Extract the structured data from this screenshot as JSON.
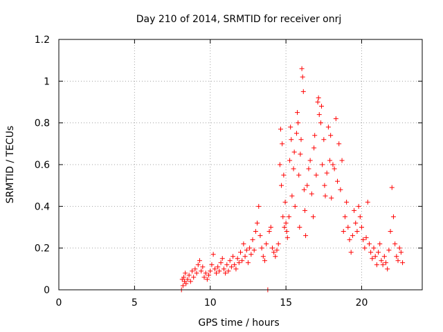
{
  "chart_data": {
    "type": "scatter",
    "title": "Day 210 of 2014, SRMTID for receiver onrj",
    "xlabel": "GPS time / hours",
    "ylabel": "SRMTID / TECUs",
    "xlim": [
      0,
      24
    ],
    "ylim": [
      0,
      1.2
    ],
    "xticks": [
      0,
      5,
      10,
      15,
      20
    ],
    "xtick_labels": [
      "0",
      "5",
      "10",
      "15",
      "20"
    ],
    "yticks": [
      0,
      0.2,
      0.4,
      0.6,
      0.8,
      1,
      1.2
    ],
    "ytick_labels": [
      "0",
      "0.2",
      "0.4",
      "0.6",
      "0.8",
      "1",
      "1.2"
    ],
    "grid": true,
    "marker": "+",
    "color": "#ff0000",
    "series": [
      {
        "name": "SRMTID",
        "points": [
          [
            8.1,
            0.0
          ],
          [
            8.15,
            0.05
          ],
          [
            8.2,
            0.02
          ],
          [
            8.25,
            0.06
          ],
          [
            8.3,
            0.04
          ],
          [
            8.35,
            0.08
          ],
          [
            8.4,
            0.03
          ],
          [
            8.5,
            0.05
          ],
          [
            8.6,
            0.07
          ],
          [
            8.7,
            0.04
          ],
          [
            8.8,
            0.09
          ],
          [
            8.9,
            0.06
          ],
          [
            9.0,
            0.1
          ],
          [
            9.1,
            0.08
          ],
          [
            9.2,
            0.12
          ],
          [
            9.3,
            0.14
          ],
          [
            9.4,
            0.09
          ],
          [
            9.5,
            0.11
          ],
          [
            9.6,
            0.06
          ],
          [
            9.7,
            0.08
          ],
          [
            9.8,
            0.05
          ],
          [
            9.9,
            0.07
          ],
          [
            10.0,
            0.09
          ],
          [
            10.1,
            0.12
          ],
          [
            10.2,
            0.17
          ],
          [
            10.3,
            0.1
          ],
          [
            10.4,
            0.08
          ],
          [
            10.5,
            0.11
          ],
          [
            10.6,
            0.09
          ],
          [
            10.7,
            0.13
          ],
          [
            10.8,
            0.15
          ],
          [
            10.9,
            0.1
          ],
          [
            11.0,
            0.08
          ],
          [
            11.1,
            0.12
          ],
          [
            11.2,
            0.09
          ],
          [
            11.3,
            0.14
          ],
          [
            11.4,
            0.11
          ],
          [
            11.5,
            0.16
          ],
          [
            11.6,
            0.12
          ],
          [
            11.7,
            0.1
          ],
          [
            11.8,
            0.15
          ],
          [
            11.9,
            0.13
          ],
          [
            12.0,
            0.18
          ],
          [
            12.1,
            0.14
          ],
          [
            12.2,
            0.22
          ],
          [
            12.3,
            0.16
          ],
          [
            12.4,
            0.19
          ],
          [
            12.5,
            0.13
          ],
          [
            12.6,
            0.2
          ],
          [
            12.7,
            0.17
          ],
          [
            12.8,
            0.24
          ],
          [
            12.9,
            0.19
          ],
          [
            13.0,
            0.28
          ],
          [
            13.1,
            0.32
          ],
          [
            13.2,
            0.4
          ],
          [
            13.3,
            0.26
          ],
          [
            13.4,
            0.2
          ],
          [
            13.5,
            0.16
          ],
          [
            13.6,
            0.14
          ],
          [
            13.7,
            0.22
          ],
          [
            13.8,
            0.0
          ],
          [
            13.9,
            0.28
          ],
          [
            14.0,
            0.3
          ],
          [
            14.1,
            0.2
          ],
          [
            14.2,
            0.18
          ],
          [
            14.3,
            0.16
          ],
          [
            14.4,
            0.19
          ],
          [
            14.5,
            0.22
          ],
          [
            14.6,
            0.6
          ],
          [
            14.65,
            0.77
          ],
          [
            14.7,
            0.5
          ],
          [
            14.75,
            0.7
          ],
          [
            14.8,
            0.35
          ],
          [
            14.85,
            0.55
          ],
          [
            14.9,
            0.3
          ],
          [
            14.95,
            0.42
          ],
          [
            15.0,
            0.32
          ],
          [
            15.05,
            0.28
          ],
          [
            15.1,
            0.25
          ],
          [
            15.2,
            0.35
          ],
          [
            15.25,
            0.62
          ],
          [
            15.3,
            0.78
          ],
          [
            15.35,
            0.72
          ],
          [
            15.4,
            0.45
          ],
          [
            15.5,
            0.58
          ],
          [
            15.55,
            0.66
          ],
          [
            15.6,
            0.4
          ],
          [
            15.7,
            0.75
          ],
          [
            15.75,
            0.85
          ],
          [
            15.8,
            0.8
          ],
          [
            15.85,
            0.55
          ],
          [
            15.9,
            0.3
          ],
          [
            15.95,
            0.65
          ],
          [
            16.0,
            0.72
          ],
          [
            16.05,
            1.06
          ],
          [
            16.1,
            1.02
          ],
          [
            16.15,
            0.95
          ],
          [
            16.2,
            0.48
          ],
          [
            16.25,
            0.38
          ],
          [
            16.3,
            0.26
          ],
          [
            16.4,
            0.5
          ],
          [
            16.5,
            0.58
          ],
          [
            16.6,
            0.62
          ],
          [
            16.7,
            0.46
          ],
          [
            16.8,
            0.35
          ],
          [
            16.85,
            0.68
          ],
          [
            16.9,
            0.74
          ],
          [
            17.0,
            0.55
          ],
          [
            17.1,
            0.9
          ],
          [
            17.15,
            0.92
          ],
          [
            17.2,
            0.84
          ],
          [
            17.3,
            0.8
          ],
          [
            17.35,
            0.88
          ],
          [
            17.4,
            0.6
          ],
          [
            17.5,
            0.72
          ],
          [
            17.55,
            0.5
          ],
          [
            17.6,
            0.45
          ],
          [
            17.7,
            0.56
          ],
          [
            17.8,
            0.78
          ],
          [
            17.9,
            0.62
          ],
          [
            17.95,
            0.74
          ],
          [
            18.0,
            0.44
          ],
          [
            18.1,
            0.6
          ],
          [
            18.2,
            0.58
          ],
          [
            18.3,
            0.82
          ],
          [
            18.4,
            0.52
          ],
          [
            18.5,
            0.7
          ],
          [
            18.6,
            0.48
          ],
          [
            18.7,
            0.62
          ],
          [
            18.8,
            0.28
          ],
          [
            18.9,
            0.35
          ],
          [
            19.0,
            0.42
          ],
          [
            19.1,
            0.3
          ],
          [
            19.2,
            0.24
          ],
          [
            19.3,
            0.18
          ],
          [
            19.4,
            0.26
          ],
          [
            19.5,
            0.38
          ],
          [
            19.6,
            0.32
          ],
          [
            19.7,
            0.28
          ],
          [
            19.8,
            0.4
          ],
          [
            19.9,
            0.35
          ],
          [
            20.0,
            0.3
          ],
          [
            20.1,
            0.24
          ],
          [
            20.2,
            0.2
          ],
          [
            20.3,
            0.25
          ],
          [
            20.4,
            0.42
          ],
          [
            20.5,
            0.22
          ],
          [
            20.6,
            0.18
          ],
          [
            20.7,
            0.15
          ],
          [
            20.8,
            0.2
          ],
          [
            20.9,
            0.16
          ],
          [
            21.0,
            0.12
          ],
          [
            21.1,
            0.18
          ],
          [
            21.2,
            0.22
          ],
          [
            21.3,
            0.14
          ],
          [
            21.4,
            0.12
          ],
          [
            21.5,
            0.16
          ],
          [
            21.6,
            0.13
          ],
          [
            21.7,
            0.1
          ],
          [
            21.8,
            0.19
          ],
          [
            21.9,
            0.28
          ],
          [
            22.0,
            0.49
          ],
          [
            22.1,
            0.35
          ],
          [
            22.2,
            0.22
          ],
          [
            22.3,
            0.16
          ],
          [
            22.4,
            0.14
          ],
          [
            22.5,
            0.2
          ],
          [
            22.6,
            0.18
          ],
          [
            22.7,
            0.13
          ]
        ]
      }
    ]
  }
}
